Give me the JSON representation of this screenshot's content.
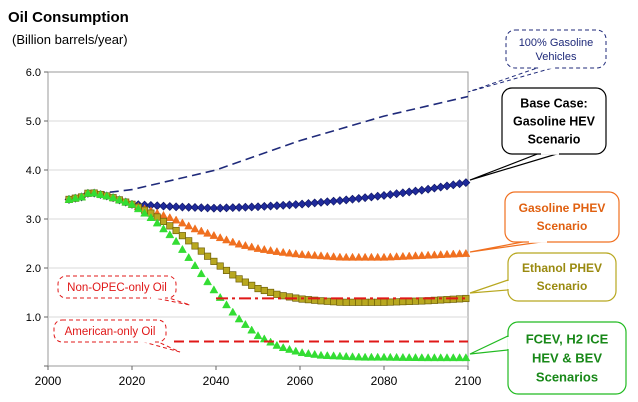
{
  "chart_data": {
    "type": "line",
    "title": "Oil Consumption",
    "subtitle": "(Billion barrels/year)",
    "xlabel": "",
    "ylabel": "",
    "xlim": [
      2000,
      2100
    ],
    "ylim": [
      0,
      6
    ],
    "x_ticks": [
      "2000",
      "2020",
      "2040",
      "2060",
      "2080",
      "2100"
    ],
    "y_ticks": [
      "",
      "1.0",
      "2.0",
      "3.0",
      "4.0",
      "5.0",
      "6.0"
    ],
    "grid": "horizontal",
    "series": [
      {
        "name": "100% Gasoline Vehicles",
        "style": "dashed",
        "color": "#1f2a7a",
        "x": [
          2005,
          2010,
          2015,
          2020,
          2030,
          2040,
          2050,
          2060,
          2070,
          2080,
          2090,
          2100
        ],
        "y": [
          3.4,
          3.55,
          3.55,
          3.6,
          3.8,
          4.0,
          4.3,
          4.6,
          4.85,
          5.1,
          5.3,
          5.5
        ]
      },
      {
        "name": "Base Case: Gasoline HEV Scenario",
        "style": "markers",
        "marker": "diamond",
        "color": "#1f2a9a",
        "x": [
          2005,
          2008,
          2010,
          2015,
          2020,
          2030,
          2040,
          2050,
          2060,
          2070,
          2080,
          2090,
          2100
        ],
        "y": [
          3.4,
          3.45,
          3.55,
          3.45,
          3.3,
          3.25,
          3.22,
          3.25,
          3.3,
          3.38,
          3.48,
          3.6,
          3.75
        ]
      },
      {
        "name": "Gasoline PHEV Scenario",
        "style": "markers",
        "marker": "triangle",
        "color": "#f07020",
        "x": [
          2005,
          2008,
          2010,
          2015,
          2020,
          2025,
          2030,
          2035,
          2040,
          2045,
          2050,
          2055,
          2060,
          2070,
          2080,
          2090,
          2100
        ],
        "y": [
          3.4,
          3.45,
          3.55,
          3.45,
          3.3,
          3.15,
          3.0,
          2.8,
          2.65,
          2.5,
          2.4,
          2.33,
          2.28,
          2.22,
          2.22,
          2.26,
          2.3
        ]
      },
      {
        "name": "Ethanol PHEV Scenario",
        "style": "markers",
        "marker": "square",
        "color": "#b8a820",
        "x": [
          2005,
          2008,
          2010,
          2015,
          2020,
          2025,
          2030,
          2035,
          2040,
          2045,
          2050,
          2055,
          2060,
          2065,
          2070,
          2080,
          2090,
          2100
        ],
        "y": [
          3.4,
          3.45,
          3.55,
          3.45,
          3.3,
          3.1,
          2.8,
          2.45,
          2.1,
          1.8,
          1.58,
          1.45,
          1.37,
          1.33,
          1.3,
          1.3,
          1.33,
          1.38
        ]
      },
      {
        "name": "FCEV, H2 ICE HEV & BEV Scenarios",
        "style": "markers",
        "marker": "triangle",
        "color": "#33dd33",
        "x": [
          2005,
          2008,
          2010,
          2015,
          2020,
          2025,
          2030,
          2035,
          2040,
          2045,
          2050,
          2055,
          2060,
          2065,
          2070,
          2075,
          2080,
          2090,
          2100
        ],
        "y": [
          3.4,
          3.45,
          3.55,
          3.45,
          3.3,
          3.0,
          2.6,
          2.05,
          1.5,
          1.0,
          0.62,
          0.4,
          0.28,
          0.22,
          0.2,
          0.18,
          0.18,
          0.17,
          0.17
        ]
      },
      {
        "name": "Non-OPEC-only Oil",
        "style": "dashdot",
        "color": "#e01818",
        "x": [
          2040,
          2100
        ],
        "y": [
          1.38,
          1.38
        ]
      },
      {
        "name": "American-only Oil",
        "style": "dashed",
        "color": "#e01818",
        "x": [
          2030,
          2100
        ],
        "y": [
          0.5,
          0.5
        ]
      }
    ],
    "annotations": [
      {
        "id": "gas100",
        "lines": [
          "100% Gasoline",
          "Vehicles"
        ]
      },
      {
        "id": "base",
        "lines": [
          "Base Case:",
          "Gasoline HEV",
          "Scenario"
        ]
      },
      {
        "id": "gphev",
        "lines": [
          "Gasoline PHEV",
          "Scenario"
        ]
      },
      {
        "id": "ephev",
        "lines": [
          "Ethanol PHEV",
          "Scenario"
        ]
      },
      {
        "id": "fcev",
        "lines": [
          "FCEV, H2 ICE",
          "HEV  & BEV",
          "Scenarios"
        ]
      },
      {
        "id": "nonopec",
        "lines": [
          "Non-OPEC-only Oil"
        ]
      },
      {
        "id": "american",
        "lines": [
          "American-only Oil"
        ]
      }
    ],
    "colors": {
      "plot_bg": "#ffffff",
      "frame": "#999999",
      "grid": "#d8d8d8",
      "title": "#000000",
      "red_label": "#e01818"
    }
  }
}
